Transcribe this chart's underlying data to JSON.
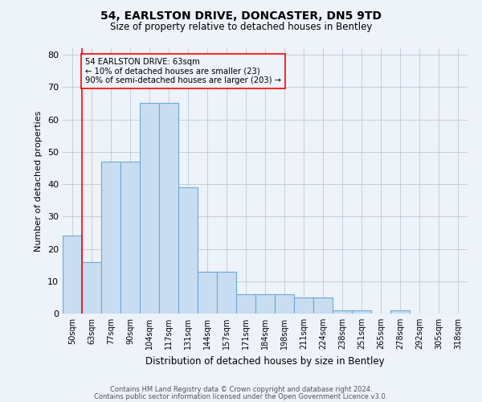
{
  "title1": "54, EARLSTON DRIVE, DONCASTER, DN5 9TD",
  "title2": "Size of property relative to detached houses in Bentley",
  "xlabel": "Distribution of detached houses by size in Bentley",
  "ylabel": "Number of detached properties",
  "categories": [
    "50sqm",
    "63sqm",
    "77sqm",
    "90sqm",
    "104sqm",
    "117sqm",
    "131sqm",
    "144sqm",
    "157sqm",
    "171sqm",
    "184sqm",
    "198sqm",
    "211sqm",
    "224sqm",
    "238sqm",
    "251sqm",
    "265sqm",
    "278sqm",
    "292sqm",
    "305sqm",
    "318sqm"
  ],
  "values": [
    24,
    16,
    47,
    47,
    65,
    65,
    39,
    13,
    13,
    6,
    6,
    6,
    5,
    5,
    1,
    1,
    0,
    1,
    0,
    0,
    0
  ],
  "bar_color": "#c9ddf2",
  "bar_edge_color": "#6aaad4",
  "ylim": [
    0,
    82
  ],
  "yticks": [
    0,
    10,
    20,
    30,
    40,
    50,
    60,
    70,
    80
  ],
  "annotation_box_text": "54 EARLSTON DRIVE: 63sqm\n← 10% of detached houses are smaller (23)\n90% of semi-detached houses are larger (203) →",
  "red_line_bar_index": 1,
  "footnote1": "Contains HM Land Registry data © Crown copyright and database right 2024.",
  "footnote2": "Contains public sector information licensed under the Open Government Licence v3.0.",
  "background_color": "#eef2f9"
}
